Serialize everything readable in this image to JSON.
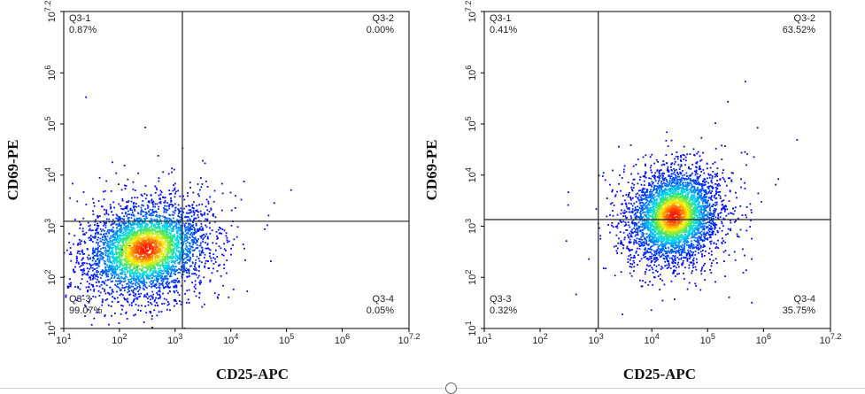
{
  "chart_data": [
    {
      "type": "scatter",
      "subtype": "flow-cytometry-density-dotplot",
      "xlabel": "CD25-APC",
      "ylabel": "CD69-PE",
      "x_scale": "log",
      "y_scale": "log",
      "xlim": [
        10,
        15848931
      ],
      "ylim": [
        10,
        15848931
      ],
      "x_ticks": [
        {
          "value": 10,
          "base": "10",
          "exp": "1"
        },
        {
          "value": 100,
          "base": "10",
          "exp": "2"
        },
        {
          "value": 1000,
          "base": "10",
          "exp": "3"
        },
        {
          "value": 10000,
          "base": "10",
          "exp": "4"
        },
        {
          "value": 100000,
          "base": "10",
          "exp": "5"
        },
        {
          "value": 1000000,
          "base": "10",
          "exp": "6"
        },
        {
          "value": 15848931,
          "base": "10",
          "exp": "7.2"
        }
      ],
      "y_ticks": [
        {
          "value": 10,
          "base": "10",
          "exp": "1"
        },
        {
          "value": 100,
          "base": "10",
          "exp": "2"
        },
        {
          "value": 1000,
          "base": "10",
          "exp": "3"
        },
        {
          "value": 10000,
          "base": "10",
          "exp": "4"
        },
        {
          "value": 100000,
          "base": "10",
          "exp": "5"
        },
        {
          "value": 1000000,
          "base": "10",
          "exp": "6"
        },
        {
          "value": 15848931,
          "base": "10",
          "exp": "7.2"
        }
      ],
      "gate_x": 1350,
      "gate_y": 1250,
      "population_center": {
        "x": 300,
        "y": 350
      },
      "population_spread": {
        "x_decades": 0.55,
        "y_decades": 0.45
      },
      "quadrants": [
        {
          "name": "Q3-1",
          "percent": "0.87%",
          "position": "top-left"
        },
        {
          "name": "Q3-2",
          "percent": "0.00%",
          "position": "top-right"
        },
        {
          "name": "Q3-3",
          "percent": "99.07%",
          "position": "bottom-left"
        },
        {
          "name": "Q3-4",
          "percent": "0.05%",
          "position": "bottom-right"
        }
      ]
    },
    {
      "type": "scatter",
      "subtype": "flow-cytometry-density-dotplot",
      "xlabel": "CD25-APC",
      "ylabel": "CD69-PE",
      "x_scale": "log",
      "y_scale": "log",
      "xlim": [
        10,
        15848931
      ],
      "ylim": [
        10,
        15848931
      ],
      "x_ticks": [
        {
          "value": 10,
          "base": "10",
          "exp": "1"
        },
        {
          "value": 100,
          "base": "10",
          "exp": "2"
        },
        {
          "value": 1000,
          "base": "10",
          "exp": "3"
        },
        {
          "value": 10000,
          "base": "10",
          "exp": "4"
        },
        {
          "value": 100000,
          "base": "10",
          "exp": "5"
        },
        {
          "value": 1000000,
          "base": "10",
          "exp": "6"
        },
        {
          "value": 15848931,
          "base": "10",
          "exp": "7.2"
        }
      ],
      "y_ticks": [
        {
          "value": 10,
          "base": "10",
          "exp": "1"
        },
        {
          "value": 100,
          "base": "10",
          "exp": "2"
        },
        {
          "value": 1000,
          "base": "10",
          "exp": "3"
        },
        {
          "value": 10000,
          "base": "10",
          "exp": "4"
        },
        {
          "value": 100000,
          "base": "10",
          "exp": "5"
        },
        {
          "value": 1000000,
          "base": "10",
          "exp": "6"
        },
        {
          "value": 15848931,
          "base": "10",
          "exp": "7.2"
        }
      ],
      "gate_x": 1100,
      "gate_y": 1350,
      "population_center": {
        "x": 25000,
        "y": 1600
      },
      "population_spread": {
        "x_decades": 0.4,
        "y_decades": 0.45
      },
      "quadrants": [
        {
          "name": "Q3-1",
          "percent": "0.41%",
          "position": "top-left"
        },
        {
          "name": "Q3-2",
          "percent": "63.52%",
          "position": "top-right"
        },
        {
          "name": "Q3-3",
          "percent": "0.32%",
          "position": "bottom-left"
        },
        {
          "name": "Q3-4",
          "percent": "35.75%",
          "position": "bottom-right"
        }
      ]
    }
  ],
  "colors": {
    "low_density": "#0000ff",
    "mid_density": "#00c8ff",
    "high_density": "#ffff00",
    "peak_density": "#ff2000",
    "gate_line": "#222222",
    "frame": "#000000"
  }
}
